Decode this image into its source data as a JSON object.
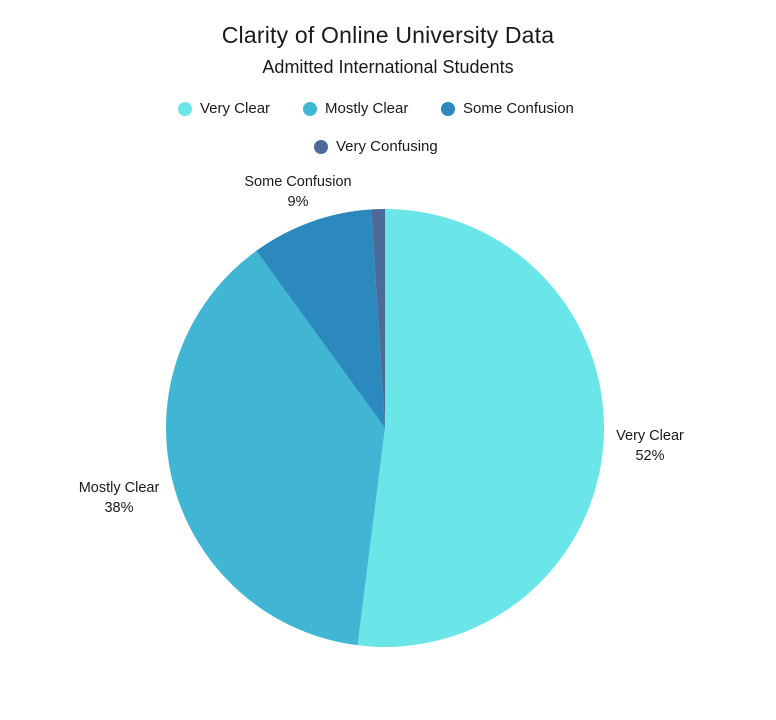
{
  "chart_data": {
    "type": "pie",
    "title": "Clarity of Online University Data",
    "subtitle": "Admitted International Students",
    "legend_position": "top",
    "slices": [
      {
        "name": "Very Clear",
        "value": 52,
        "label": "52%",
        "color": "#6ae5e8"
      },
      {
        "name": "Mostly Clear",
        "value": 38,
        "label": "38%",
        "color": "#41b6d4"
      },
      {
        "name": "Some Confusion",
        "value": 9,
        "label": "9%",
        "color": "#2b89bd"
      },
      {
        "name": "Very Confusing",
        "value": 1,
        "label": "",
        "color": "#4c6b99"
      }
    ]
  }
}
